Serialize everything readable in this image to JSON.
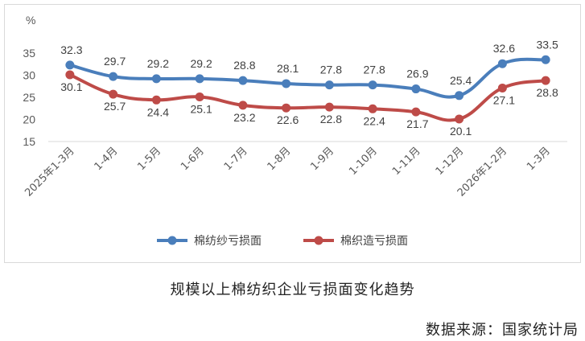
{
  "chart_data": {
    "type": "line",
    "ylabel": "%",
    "ylim": [
      15,
      35
    ],
    "yticks": [
      15,
      20,
      25,
      30,
      35
    ],
    "grid": false,
    "legend_position": "bottom",
    "categories": [
      "2025年1-3月",
      "1-4月",
      "1-5月",
      "1-6月",
      "1-7月",
      "1-8月",
      "1-9月",
      "1-10月",
      "1-11月",
      "1-12月",
      "2026年1-2月",
      "1-3月"
    ],
    "series": [
      {
        "name": "棉纺纱亏损面",
        "color": "#4a7ebb",
        "values": [
          32.3,
          29.7,
          29.2,
          29.2,
          28.8,
          28.1,
          27.8,
          27.8,
          26.9,
          25.4,
          32.6,
          33.5
        ]
      },
      {
        "name": "棉织造亏损面",
        "color": "#be4b48",
        "values": [
          30.1,
          25.7,
          24.4,
          25.1,
          23.2,
          22.6,
          22.8,
          22.4,
          21.7,
          20.1,
          27.1,
          28.8
        ]
      }
    ]
  },
  "caption": "规模以上棉纺织企业亏损面变化趋势",
  "source": "数据来源：国家统计局"
}
